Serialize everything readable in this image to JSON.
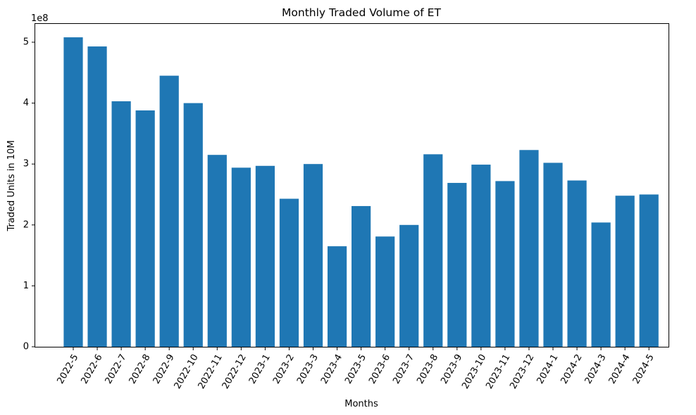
{
  "chart_data": {
    "type": "bar",
    "title": "Monthly Traded Volume of ET",
    "xlabel": "Months",
    "ylabel": "Traded Units in 10M",
    "y_offset_label": "1e8",
    "y_scale": 100000000,
    "ylim": [
      0,
      530000000
    ],
    "y_ticks": [
      0,
      100000000,
      200000000,
      300000000,
      400000000,
      500000000
    ],
    "y_tick_labels": [
      "0",
      "1",
      "2",
      "3",
      "4",
      "5"
    ],
    "categories": [
      "2022-5",
      "2022-6",
      "2022-7",
      "2022-8",
      "2022-9",
      "2022-10",
      "2022-11",
      "2022-12",
      "2023-1",
      "2023-2",
      "2023-3",
      "2023-4",
      "2023-5",
      "2023-6",
      "2023-7",
      "2023-8",
      "2023-9",
      "2023-10",
      "2023-11",
      "2023-12",
      "2024-1",
      "2024-2",
      "2024-3",
      "2024-4",
      "2024-5"
    ],
    "values": [
      508000000,
      493000000,
      403000000,
      388000000,
      445000000,
      400000000,
      315000000,
      294000000,
      297000000,
      243000000,
      300000000,
      165000000,
      231000000,
      181000000,
      200000000,
      316000000,
      269000000,
      299000000,
      272000000,
      323000000,
      302000000,
      273000000,
      204000000,
      248000000,
      250000000
    ],
    "bar_color": "#1f77b4",
    "grid": false,
    "legend": false
  }
}
